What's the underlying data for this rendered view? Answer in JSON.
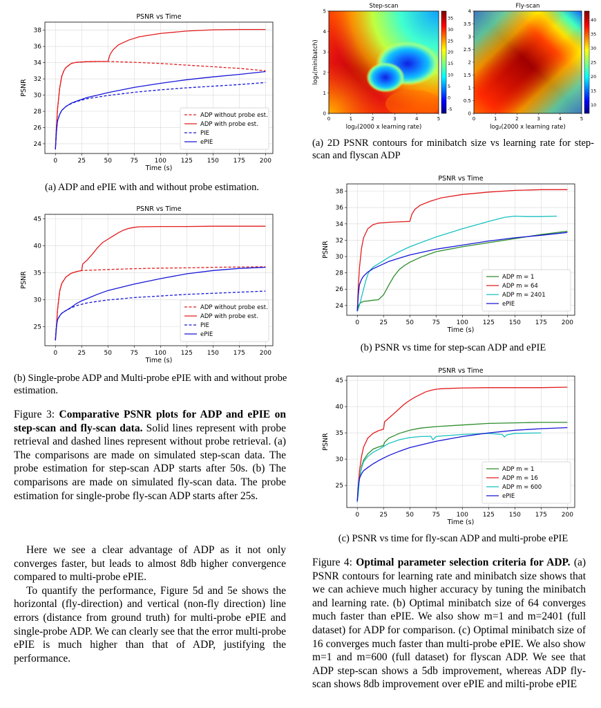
{
  "left_column": {
    "subcaption_a": "(a) ADP and ePIE with and without probe estimation.",
    "subcaption_b": "(b) Single-probe ADP and Multi-probe ePIE with and without probe estimation.",
    "figure3_label": "Figure 3:",
    "figure3_bold": "Comparative PSNR plots for ADP and ePIE on step-scan and fly-scan data.",
    "figure3_rest": " Solid lines represent with probe retrieval and dashed lines represent without probe retrieval. (a) The comparisons are made on simulated step-scan data. The probe estimation for step-scan ADP starts after 50s. (b) The comparisons are made on simulated fly-scan data. The probe estimation for single-probe fly-scan ADP starts after 25s.",
    "paragraph1": "Here we see a clear advantage of ADP as it not only converges faster, but leads to almost 8db higher convergence compared to multi-probe ePIE.",
    "paragraph2": "To quantify the performance, Figure 5d and 5e shows the horizontal (fly-direction) and vertical (non-fly direction) line errors (distance from ground truth) for multi-probe ePIE and single-probe ADP. We can clearly see that the error multi-probe ePIE is much higher than that of ADP, justifying the performance."
  },
  "right_column": {
    "subcaption_a": "(a) 2D PSNR contours for minibatch size vs learning rate for step-scan and flyscan ADP",
    "subcaption_b": "(b) PSNR vs time for step-scan ADP and ePIE",
    "subcaption_c": "(c) PSNR vs time for fly-scan ADP and multi-probe ePIE",
    "figure4_label": "Figure 4:",
    "figure4_bold": "Optimal parameter selection criteria for ADP.",
    "figure4_rest": " (a) PSNR contours for learning rate and minibatch size shows that we can achieve much higher accuracy by tuning the minibatch and learning rate. (b) Optimal minibatch size of 64 converges much faster than ePIE. We also show m=1 and m=2401 (full dataset) for ADP for comparison. (c) Optimal minibatch size of 16 converges much faster than multi-probe ePIE. We also show m=1 and m=600 (full dataset) for flyscan ADP. We see that ADP step-scan shows a 5db improvement, whereas ADP fly-scan shows 8db improvement over ePIE and milti-probe ePIE"
  },
  "chart_data": [
    {
      "id": "fig3a",
      "type": "line",
      "title": "PSNR vs Time",
      "xlabel": "Time (s)",
      "ylabel": "PSNR",
      "xlim": [
        -10,
        207
      ],
      "ylim": [
        22.8,
        39.0
      ],
      "xticks": [
        0,
        25,
        50,
        75,
        100,
        125,
        150,
        175,
        200
      ],
      "yticks": [
        24,
        26,
        28,
        30,
        32,
        34,
        36,
        38
      ],
      "grid": true,
      "legend_position": "lower-right",
      "series": [
        {
          "name": "ADP without probe est.",
          "color": "#e31a1c",
          "dash": true,
          "x": [
            0,
            1,
            2,
            4,
            6,
            8,
            10,
            15,
            20,
            30,
            40,
            50,
            75,
            100,
            125,
            150,
            175,
            200
          ],
          "y": [
            23.3,
            26.0,
            28.2,
            30.8,
            32.3,
            33.0,
            33.4,
            33.9,
            34.05,
            34.12,
            34.15,
            34.15,
            34.05,
            33.9,
            33.7,
            33.5,
            33.3,
            33.0
          ]
        },
        {
          "name": "ADP with probe est.",
          "color": "#e31a1c",
          "dash": false,
          "x": [
            0,
            1,
            2,
            4,
            6,
            8,
            10,
            15,
            20,
            30,
            40,
            50,
            52,
            55,
            60,
            70,
            80,
            100,
            125,
            150,
            175,
            200
          ],
          "y": [
            23.3,
            26.0,
            28.2,
            30.8,
            32.3,
            33.0,
            33.4,
            33.9,
            34.05,
            34.12,
            34.15,
            34.15,
            35.0,
            35.6,
            36.2,
            36.8,
            37.2,
            37.6,
            37.9,
            38.05,
            38.1,
            38.1
          ]
        },
        {
          "name": "PIE",
          "color": "#1515d8",
          "dash": true,
          "x": [
            0,
            1,
            2,
            4,
            6,
            10,
            15,
            20,
            30,
            40,
            50,
            75,
            100,
            125,
            150,
            175,
            200
          ],
          "y": [
            23.3,
            25.5,
            26.8,
            27.6,
            28.1,
            28.6,
            28.95,
            29.2,
            29.55,
            29.75,
            29.95,
            30.35,
            30.65,
            30.9,
            31.1,
            31.3,
            31.55
          ]
        },
        {
          "name": "ePIE",
          "color": "#1515d8",
          "dash": false,
          "x": [
            0,
            1,
            2,
            4,
            6,
            10,
            15,
            20,
            30,
            40,
            50,
            75,
            100,
            125,
            150,
            175,
            200
          ],
          "y": [
            23.3,
            25.5,
            26.8,
            27.6,
            28.1,
            28.6,
            29.0,
            29.25,
            29.7,
            30.0,
            30.3,
            30.95,
            31.45,
            31.9,
            32.25,
            32.55,
            32.9
          ]
        }
      ]
    },
    {
      "id": "fig3b",
      "type": "line",
      "title": "PSNR vs Time",
      "xlabel": "Time (s)",
      "ylabel": "PSNR",
      "xlim": [
        -10,
        207
      ],
      "ylim": [
        21.5,
        45.8
      ],
      "xticks": [
        0,
        25,
        50,
        75,
        100,
        125,
        150,
        175,
        200
      ],
      "yticks": [
        25,
        30,
        35,
        40,
        45
      ],
      "grid": true,
      "legend_position": "lower-right",
      "series": [
        {
          "name": "ADP without probe est.",
          "color": "#e31a1c",
          "dash": true,
          "x": [
            0,
            1,
            2,
            4,
            6,
            10,
            15,
            20,
            25,
            50,
            75,
            100,
            125,
            150,
            175,
            200
          ],
          "y": [
            22.5,
            25.0,
            28.0,
            31.5,
            33.0,
            34.2,
            34.9,
            35.2,
            35.4,
            35.6,
            35.75,
            35.85,
            35.9,
            36.0,
            36.05,
            36.1
          ]
        },
        {
          "name": "ADP with probe est.",
          "color": "#e31a1c",
          "dash": false,
          "x": [
            0,
            1,
            2,
            4,
            6,
            10,
            15,
            20,
            25,
            26,
            30,
            35,
            40,
            45,
            50,
            55,
            60,
            65,
            70,
            75,
            80,
            100,
            125,
            150,
            175,
            200
          ],
          "y": [
            22.5,
            25.0,
            28.0,
            31.5,
            33.0,
            34.2,
            34.9,
            35.2,
            35.4,
            36.6,
            37.3,
            38.4,
            39.6,
            40.6,
            41.2,
            41.8,
            42.4,
            42.9,
            43.2,
            43.4,
            43.5,
            43.55,
            43.55,
            43.6,
            43.6,
            43.6
          ]
        },
        {
          "name": "PIE",
          "color": "#1515d8",
          "dash": true,
          "x": [
            0,
            1,
            2,
            4,
            6,
            10,
            15,
            20,
            30,
            40,
            50,
            75,
            100,
            125,
            150,
            175,
            200
          ],
          "y": [
            22.5,
            25.0,
            26.3,
            27.0,
            27.5,
            28.0,
            28.5,
            28.9,
            29.4,
            29.7,
            29.95,
            30.4,
            30.7,
            31.0,
            31.2,
            31.4,
            31.6
          ]
        },
        {
          "name": "ePIE",
          "color": "#1515d8",
          "dash": false,
          "x": [
            0,
            1,
            2,
            4,
            6,
            10,
            15,
            20,
            25,
            30,
            40,
            50,
            75,
            100,
            125,
            150,
            175,
            200
          ],
          "y": [
            22.5,
            25.0,
            26.3,
            27.0,
            27.5,
            28.0,
            28.6,
            29.3,
            29.8,
            30.2,
            31.0,
            31.7,
            32.9,
            33.9,
            34.8,
            35.4,
            35.8,
            36.0
          ]
        }
      ]
    },
    {
      "id": "fig4b",
      "type": "line",
      "title": "PSNR vs Time",
      "xlabel": "Time (s)",
      "ylabel": "PSNR",
      "xlim": [
        -10,
        207
      ],
      "ylim": [
        22.8,
        38.9
      ],
      "xticks": [
        0,
        25,
        50,
        75,
        100,
        125,
        150,
        175,
        200
      ],
      "yticks": [
        24,
        26,
        28,
        30,
        32,
        34,
        36,
        38
      ],
      "grid": true,
      "legend_position": "lower-right",
      "series": [
        {
          "name": "ADP m = 1",
          "color": "#2a8c2a",
          "dash": false,
          "x": [
            0,
            1,
            2,
            4,
            6,
            10,
            15,
            20,
            25,
            30,
            35,
            40,
            45,
            50,
            60,
            75,
            100,
            125,
            150,
            175,
            200
          ],
          "y": [
            23.3,
            23.9,
            24.2,
            24.4,
            24.5,
            24.55,
            24.65,
            24.7,
            25.3,
            26.5,
            27.6,
            28.4,
            28.9,
            29.3,
            29.9,
            30.6,
            31.2,
            31.7,
            32.2,
            32.7,
            33.1
          ]
        },
        {
          "name": "ADP m = 64",
          "color": "#e31a1c",
          "dash": false,
          "x": [
            0,
            1,
            2,
            4,
            6,
            10,
            15,
            20,
            30,
            40,
            50,
            52,
            55,
            60,
            70,
            80,
            100,
            125,
            150,
            175,
            200
          ],
          "y": [
            23.3,
            26.2,
            28.5,
            31.0,
            32.3,
            33.4,
            33.9,
            34.1,
            34.2,
            34.25,
            34.3,
            35.2,
            35.8,
            36.3,
            36.8,
            37.2,
            37.6,
            37.9,
            38.1,
            38.2,
            38.2
          ]
        },
        {
          "name": "ADP m = 2401",
          "color": "#18c0c0",
          "dash": false,
          "x": [
            0,
            1,
            2,
            4,
            6,
            8,
            10,
            12,
            15,
            20,
            25,
            30,
            40,
            50,
            75,
            100,
            125,
            140,
            150,
            160,
            175,
            190
          ],
          "y": [
            23.3,
            23.6,
            24.0,
            25.0,
            26.0,
            27.0,
            27.8,
            28.3,
            28.7,
            29.1,
            29.5,
            29.9,
            30.6,
            31.2,
            32.4,
            33.4,
            34.3,
            34.8,
            34.95,
            34.9,
            34.9,
            34.95
          ]
        },
        {
          "name": "ePIE",
          "color": "#1515d8",
          "dash": false,
          "x": [
            0,
            1,
            2,
            4,
            6,
            10,
            15,
            20,
            25,
            30,
            40,
            50,
            75,
            100,
            125,
            150,
            175,
            200
          ],
          "y": [
            23.3,
            25.3,
            26.5,
            27.2,
            27.6,
            28.1,
            28.5,
            28.8,
            29.1,
            29.4,
            29.8,
            30.2,
            30.9,
            31.4,
            31.9,
            32.3,
            32.6,
            32.95
          ]
        }
      ]
    },
    {
      "id": "fig4c",
      "type": "line",
      "title": "PSNR vs Time",
      "xlabel": "Time (s)",
      "ylabel": "PSNR",
      "xlim": [
        -10,
        207
      ],
      "ylim": [
        20.8,
        45.8
      ],
      "xticks": [
        0,
        25,
        50,
        75,
        100,
        125,
        150,
        175,
        200
      ],
      "yticks": [
        25,
        30,
        35,
        40,
        45
      ],
      "grid": true,
      "legend_position": "lower-right",
      "series": [
        {
          "name": "ADP m = 1",
          "color": "#2a8c2a",
          "dash": false,
          "x": [
            0,
            1,
            2,
            4,
            6,
            10,
            15,
            20,
            25,
            26,
            30,
            40,
            50,
            60,
            75,
            100,
            125,
            150,
            175,
            200
          ],
          "y": [
            22.0,
            24.0,
            26.2,
            28.6,
            29.8,
            31.0,
            31.9,
            32.3,
            32.6,
            33.2,
            34.0,
            34.9,
            35.5,
            35.9,
            36.2,
            36.5,
            36.8,
            36.9,
            37.0,
            37.0
          ]
        },
        {
          "name": "ADP m = 16",
          "color": "#e31a1c",
          "dash": false,
          "x": [
            0,
            1,
            2,
            4,
            6,
            10,
            15,
            20,
            25,
            26,
            30,
            35,
            40,
            45,
            50,
            55,
            60,
            65,
            70,
            75,
            80,
            100,
            125,
            150,
            175,
            200
          ],
          "y": [
            22.0,
            25.0,
            27.6,
            30.5,
            32.3,
            34.0,
            34.9,
            35.4,
            35.7,
            37.1,
            37.8,
            38.7,
            39.6,
            40.5,
            41.2,
            41.8,
            42.3,
            42.8,
            43.1,
            43.3,
            43.4,
            43.55,
            43.6,
            43.6,
            43.6,
            43.7
          ]
        },
        {
          "name": "ADP m = 600",
          "color": "#18c0c0",
          "dash": false,
          "x": [
            0,
            1,
            2,
            4,
            6,
            10,
            15,
            20,
            25,
            30,
            40,
            50,
            60,
            70,
            72,
            75,
            80,
            100,
            125,
            138,
            140,
            142,
            150,
            175
          ],
          "y": [
            21.8,
            23.5,
            26.0,
            28.3,
            29.5,
            30.5,
            31.3,
            31.8,
            32.4,
            33.0,
            33.7,
            34.1,
            34.3,
            34.35,
            33.7,
            34.3,
            34.4,
            34.7,
            34.9,
            34.7,
            34.2,
            34.6,
            34.9,
            35.0
          ]
        },
        {
          "name": "ePIE",
          "color": "#1515d8",
          "dash": false,
          "x": [
            0,
            1,
            2,
            4,
            6,
            10,
            15,
            20,
            25,
            30,
            40,
            50,
            75,
            100,
            125,
            150,
            175,
            200
          ],
          "y": [
            22.0,
            25.0,
            26.3,
            27.2,
            27.8,
            28.4,
            29.1,
            29.7,
            30.2,
            30.7,
            31.5,
            32.2,
            33.4,
            34.3,
            35.0,
            35.5,
            35.8,
            36.0
          ]
        }
      ]
    },
    {
      "id": "fig4a_step",
      "type": "heatmap",
      "title": "Step-scan",
      "xlabel": "log₂(2000 x learning rate)",
      "ylabel": "log₄(minibatch)",
      "xlim": [
        0,
        5
      ],
      "ylim": [
        0,
        5
      ],
      "xticks": [
        0,
        1,
        2,
        3,
        4,
        5
      ],
      "yticks": [
        0,
        1,
        2,
        3,
        4,
        5
      ],
      "colorbar_ticks": [
        -5,
        0,
        5,
        10,
        15,
        20,
        25,
        30,
        35
      ],
      "colorbar_range": [
        -7,
        38
      ],
      "colormap": "jet"
    },
    {
      "id": "fig4a_fly",
      "type": "heatmap",
      "title": "Fly-scan",
      "xlabel": "log₂(2000 x learning rate)",
      "ylabel": "",
      "xlim": [
        0,
        5
      ],
      "ylim": [
        0,
        4
      ],
      "xticks": [
        0,
        1,
        2,
        3,
        4,
        5
      ],
      "yticks": [
        0,
        0.5,
        1,
        1.5,
        2,
        2.5,
        3,
        3.5,
        4
      ],
      "colorbar_ticks": [
        10,
        15,
        20,
        25,
        30,
        35,
        40
      ],
      "colorbar_range": [
        7,
        43
      ],
      "colormap": "jet"
    }
  ]
}
